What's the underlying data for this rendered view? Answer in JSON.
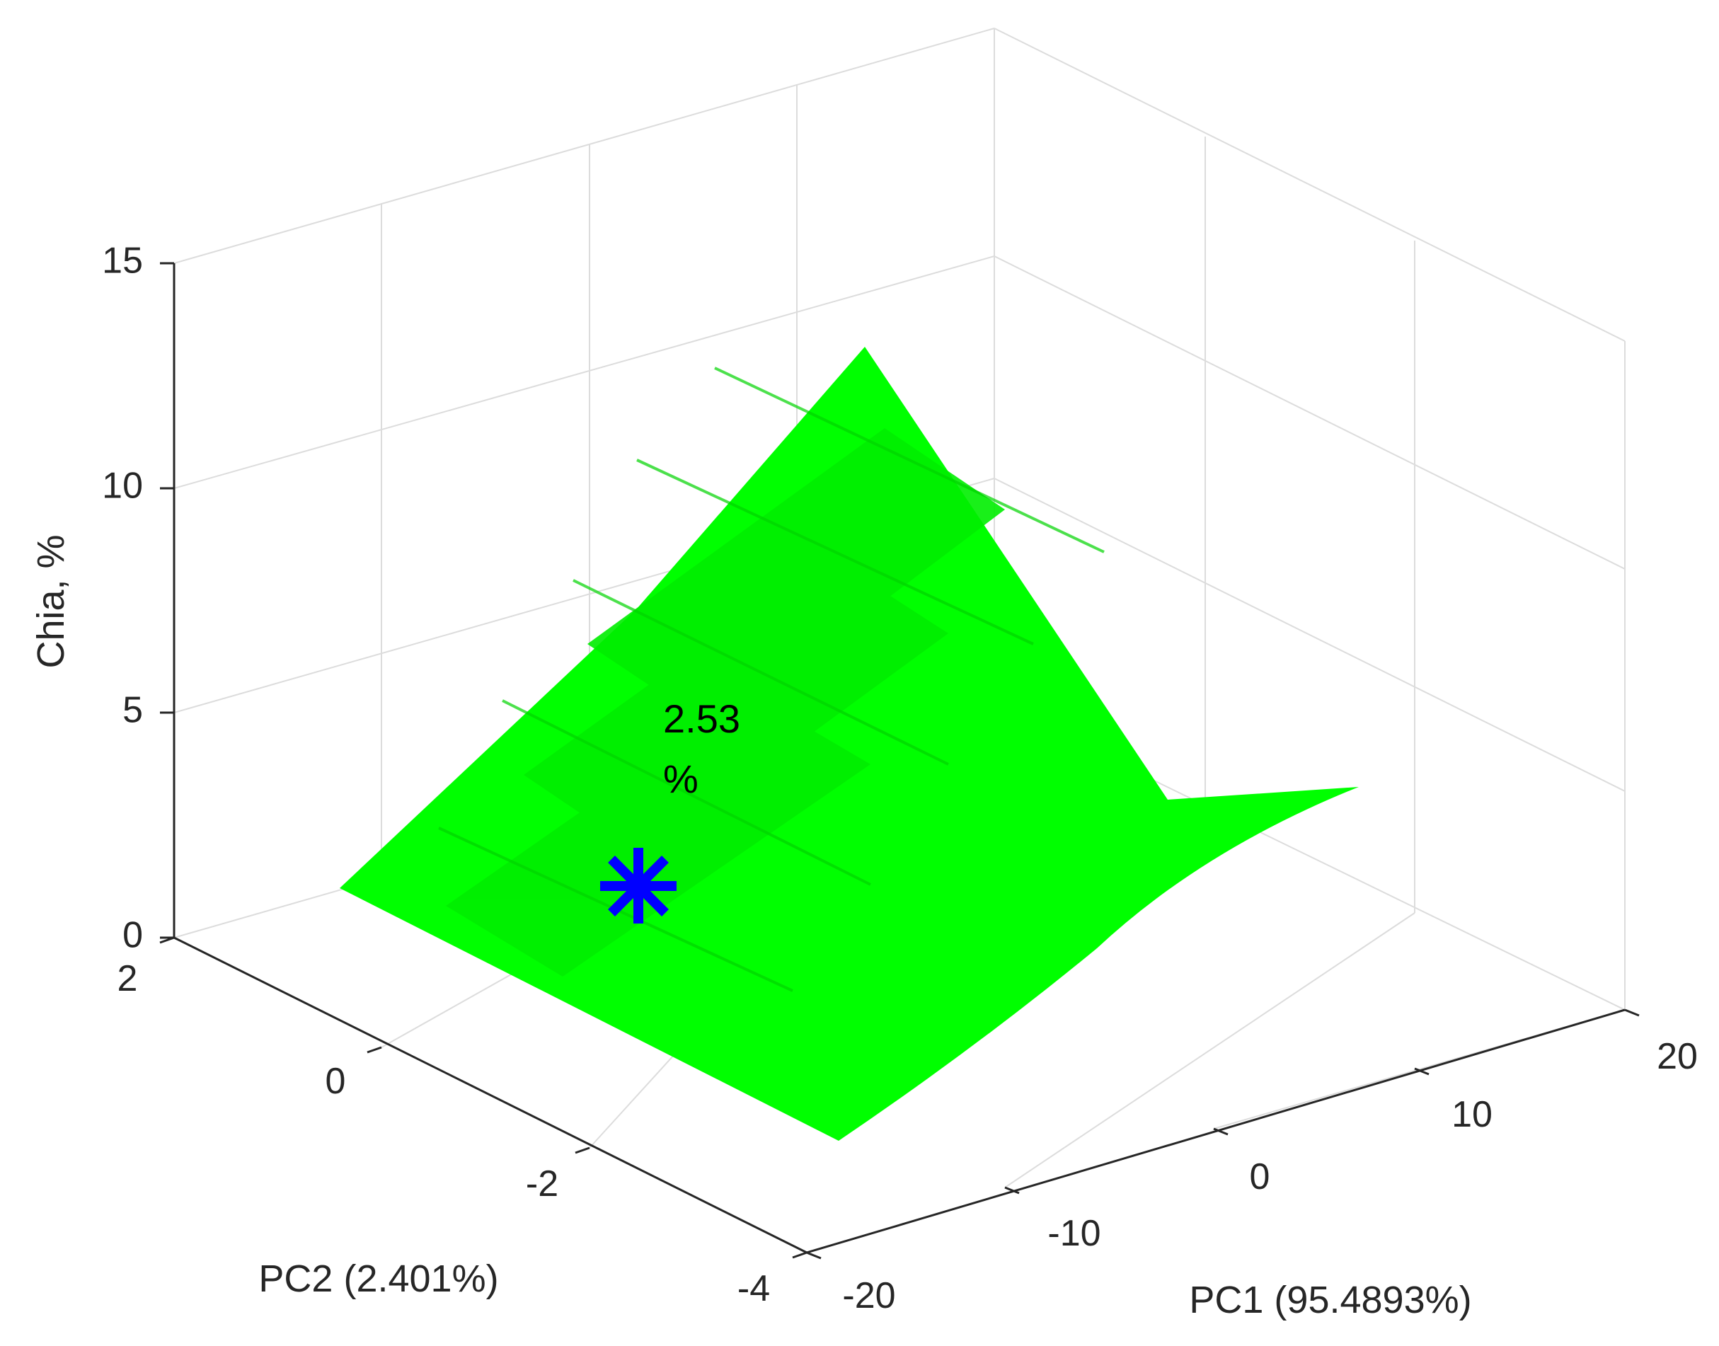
{
  "chart_data": {
    "type": "surface3d",
    "x_label": "PC1 (95.4893%)",
    "y_label": "PC2 (2.401%)",
    "z_label": "Chia, %",
    "x_ticks": [
      -20,
      -10,
      0,
      10,
      20
    ],
    "y_ticks": [
      2,
      0,
      -2,
      -4
    ],
    "z_ticks": [
      0,
      5,
      10,
      15
    ],
    "x_range": [
      -20,
      20
    ],
    "y_range": [
      -4,
      2
    ],
    "z_range": [
      0,
      15
    ],
    "grid": true,
    "surface": {
      "color": "#00ff00",
      "corners": [
        {
          "pc1": -20,
          "pc2": 1,
          "z": 0
        },
        {
          "pc1": -20,
          "pc2": -3.7,
          "z": 0
        },
        {
          "pc1": 17,
          "pc2": 1,
          "z": 0
        },
        {
          "pc1": 17,
          "pc2": -3.7,
          "z": 0
        },
        {
          "pc1": 0,
          "pc2": 1,
          "z": 12
        }
      ]
    },
    "marker": {
      "symbol": "asterisk",
      "color": "#0000ff",
      "pc1": -12,
      "pc2": -1,
      "z": 2.53
    },
    "annotation": {
      "line1": "2.53",
      "line2": "%"
    }
  }
}
